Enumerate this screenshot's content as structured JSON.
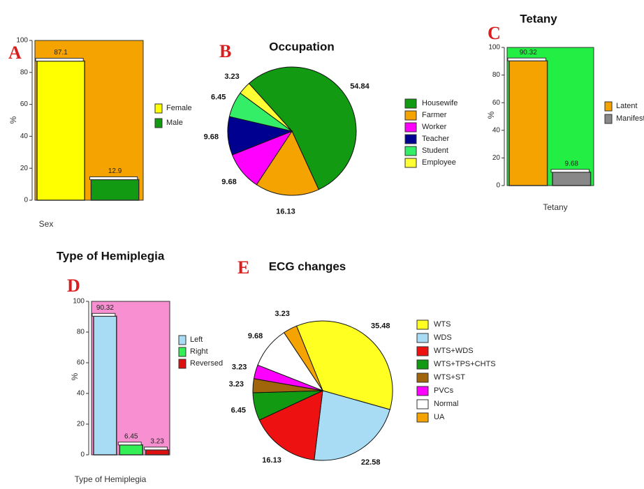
{
  "chart_data": [
    {
      "type": "bar",
      "panel_label": "A",
      "x_label": "Sex",
      "y_label": "%",
      "background": "#f5a300",
      "ylim": [
        0,
        100
      ],
      "yticks": [
        0,
        20,
        40,
        60,
        80,
        100
      ],
      "series": [
        {
          "name": "Female",
          "color": "#ffff00",
          "values": [
            87.1
          ]
        },
        {
          "name": "Male",
          "color": "#129a12",
          "values": [
            12.9
          ]
        }
      ]
    },
    {
      "type": "pie",
      "panel_label": "B",
      "title": "Occupation",
      "categories": [
        "Housewife",
        "Farmer",
        "Worker",
        "Teacher",
        "Student",
        "Employee"
      ],
      "values": [
        54.84,
        16.13,
        9.68,
        9.68,
        6.45,
        3.23
      ],
      "colors": [
        "#129a12",
        "#f5a300",
        "#ff00ff",
        "#000090",
        "#33ee66",
        "#ffff33"
      ]
    },
    {
      "type": "bar",
      "panel_label": "C",
      "title": "Tetany",
      "x_label": "Tetany",
      "y_label": "%",
      "background": "#22ee44",
      "ylim": [
        0,
        100
      ],
      "yticks": [
        0,
        20,
        40,
        60,
        80,
        100
      ],
      "series": [
        {
          "name": "Latent",
          "color": "#f5a300",
          "values": [
            90.32
          ]
        },
        {
          "name": "Manifested",
          "color": "#888888",
          "values": [
            9.68
          ]
        }
      ]
    },
    {
      "type": "bar",
      "panel_label": "D",
      "title": "Type of Hemiplegia",
      "x_label": "Type of Hemiplegia",
      "y_label": "%",
      "background": "#f78fd0",
      "ylim": [
        0,
        100
      ],
      "yticks": [
        0,
        20,
        40,
        60,
        80,
        100
      ],
      "series": [
        {
          "name": "Left",
          "color": "#a8dcf5",
          "values": [
            90.32
          ]
        },
        {
          "name": "Right",
          "color": "#33ee55",
          "values": [
            6.45
          ]
        },
        {
          "name": "Reversed",
          "color": "#dd1111",
          "values": [
            3.23
          ]
        }
      ]
    },
    {
      "type": "pie",
      "panel_label": "E",
      "title": "ECG changes",
      "categories": [
        "WTS",
        "WDS",
        "WTS+WDS",
        "WTS+TPS+CHTS",
        "WTS+ST",
        "PVCs",
        "Normal",
        "UA"
      ],
      "values": [
        35.48,
        22.58,
        16.13,
        6.45,
        3.23,
        3.23,
        9.68,
        3.23
      ],
      "colors": [
        "#ffff22",
        "#a8dcf5",
        "#ee1111",
        "#129a12",
        "#a0640a",
        "#ff00ff",
        "#ffffff",
        "#f5a300"
      ]
    }
  ]
}
